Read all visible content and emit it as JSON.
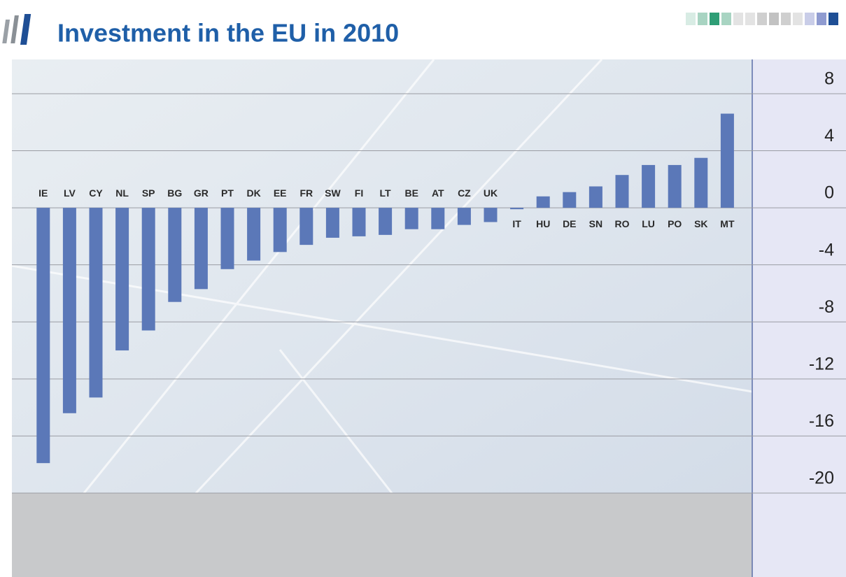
{
  "chart_data": {
    "type": "bar",
    "title": "Investment in the EU in 2010",
    "categories": [
      "IE",
      "LV",
      "CY",
      "NL",
      "SP",
      "BG",
      "GR",
      "PT",
      "DK",
      "EE",
      "FR",
      "SW",
      "FI",
      "LT",
      "BE",
      "AT",
      "CZ",
      "UK",
      "IT",
      "HU",
      "DE",
      "SN",
      "RO",
      "LU",
      "PO",
      "SK",
      "MT"
    ],
    "values": [
      -17.9,
      -14.4,
      -13.3,
      -10.0,
      -8.6,
      -6.6,
      -5.7,
      -4.3,
      -3.7,
      -3.1,
      -2.6,
      -2.1,
      -2.0,
      -1.9,
      -1.5,
      -1.5,
      -1.2,
      -1.0,
      -0.1,
      0.8,
      1.1,
      1.5,
      2.3,
      3.0,
      3.0,
      3.5,
      6.6
    ],
    "color": "#5b78b8",
    "ylim": [
      -20,
      10.4
    ],
    "yticks": [
      8,
      4,
      0,
      -4,
      -8,
      -12,
      -16,
      -20
    ],
    "grid": true
  }
}
